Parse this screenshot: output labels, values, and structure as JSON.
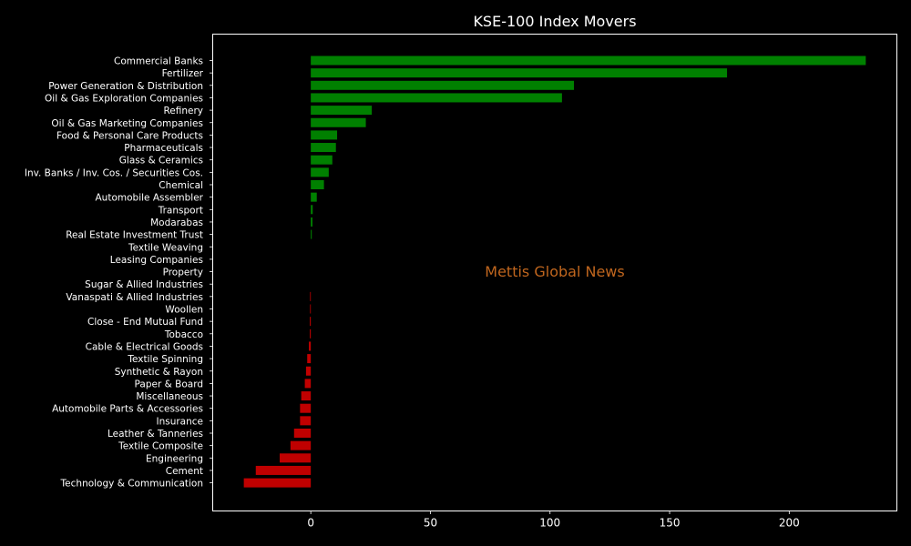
{
  "chart_data": {
    "type": "bar",
    "orientation": "horizontal",
    "title": "KSE-100 Index Movers",
    "watermark": "Mettis Global News",
    "xlabel": "",
    "ylabel": "",
    "xlim": [
      -41,
      245
    ],
    "xticks": [
      0,
      50,
      100,
      150,
      200
    ],
    "grid": false,
    "colors": {
      "background": "#000000",
      "positive": "#008000",
      "negative": "#c00000",
      "text": "#ffffff",
      "axes": "#ffffff",
      "watermark": "#c0661e"
    },
    "categories": [
      "Commercial Banks",
      "Fertilizer",
      "Power Generation & Distribution",
      "Oil & Gas Exploration Companies",
      "Refinery",
      "Oil & Gas Marketing Companies",
      "Food & Personal Care Products",
      "Pharmaceuticals",
      "Glass & Ceramics",
      "Inv. Banks / Inv. Cos. / Securities Cos.",
      "Chemical",
      "Automobile Assembler",
      "Transport",
      "Modarabas",
      "Real Estate Investment Trust",
      "Textile Weaving",
      "Leasing Companies",
      "Property",
      "Sugar & Allied Industries",
      "Vanaspati & Allied Industries",
      "Woollen",
      "Close - End Mutual Fund",
      "Tobacco",
      "Cable & Electrical Goods",
      "Textile Spinning",
      "Synthetic & Rayon",
      "Paper & Board",
      "Miscellaneous",
      "Automobile Parts & Accessories",
      "Insurance",
      "Leather & Tanneries",
      "Textile Composite",
      "Engineering",
      "Cement",
      "Technology & Communication"
    ],
    "values": [
      232,
      174,
      110,
      105,
      25.5,
      23,
      11,
      10.5,
      9,
      7.5,
      5.5,
      2.5,
      0.8,
      0.7,
      0.4,
      0,
      0,
      0,
      0,
      -0.3,
      -0.3,
      -0.4,
      -0.4,
      -0.8,
      -1.5,
      -2.0,
      -2.5,
      -4.0,
      -4.5,
      -4.5,
      -7.0,
      -8.5,
      -13,
      -23,
      -28
    ]
  }
}
